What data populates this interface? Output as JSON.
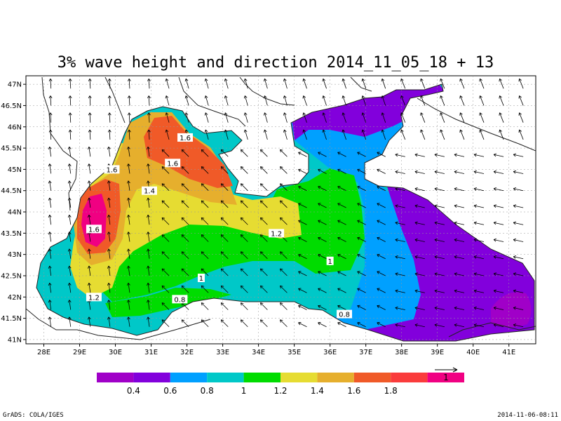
{
  "title": "3% wave height and direction 2014_11_05_18 + 13",
  "footer": {
    "left": "GrADS: COLA/IGES",
    "right": "2014-11-06-08:11"
  },
  "axes": {
    "lon_ticks": [
      "28E",
      "29E",
      "30E",
      "31E",
      "32E",
      "33E",
      "34E",
      "35E",
      "36E",
      "37E",
      "38E",
      "39E",
      "40E",
      "41E"
    ],
    "lat_ticks": [
      "47N",
      "46.5N",
      "46N",
      "45.5N",
      "45N",
      "44.5N",
      "44N",
      "43.5N",
      "43N",
      "42.5N",
      "42N",
      "41.5N",
      "41N"
    ],
    "lon_range": [
      27.5,
      41.75
    ],
    "lat_range": [
      40.9,
      47.2
    ]
  },
  "colorbar": {
    "colors": [
      "#a000c8",
      "#8200dc",
      "#00a0ff",
      "#00c8c8",
      "#00dc00",
      "#e6dc32",
      "#e6af2d",
      "#f05a28",
      "#fa3c3c",
      "#f00082"
    ],
    "labels": [
      "0.4",
      "0.6",
      "0.8",
      "1",
      "1.2",
      "1.4",
      "1.6",
      "1.8"
    ],
    "reference_vector_label": "1"
  },
  "contour_labels": [
    {
      "text": "1.6",
      "lon": 31.95,
      "lat": 45.75
    },
    {
      "text": "1.6",
      "lon": 31.6,
      "lat": 45.15
    },
    {
      "text": "1.6",
      "lon": 29.9,
      "lat": 45.0
    },
    {
      "text": "1.4",
      "lon": 30.95,
      "lat": 44.5
    },
    {
      "text": "1.6",
      "lon": 29.4,
      "lat": 43.6
    },
    {
      "text": "1.2",
      "lon": 34.5,
      "lat": 43.5
    },
    {
      "text": "1",
      "lon": 36.0,
      "lat": 42.85
    },
    {
      "text": "1",
      "lon": 32.4,
      "lat": 42.45
    },
    {
      "text": "1.2",
      "lon": 29.4,
      "lat": 42.0
    },
    {
      "text": "0.8",
      "lon": 31.8,
      "lat": 41.95
    },
    {
      "text": "0.8",
      "lon": 36.4,
      "lat": 41.6
    }
  ]
}
